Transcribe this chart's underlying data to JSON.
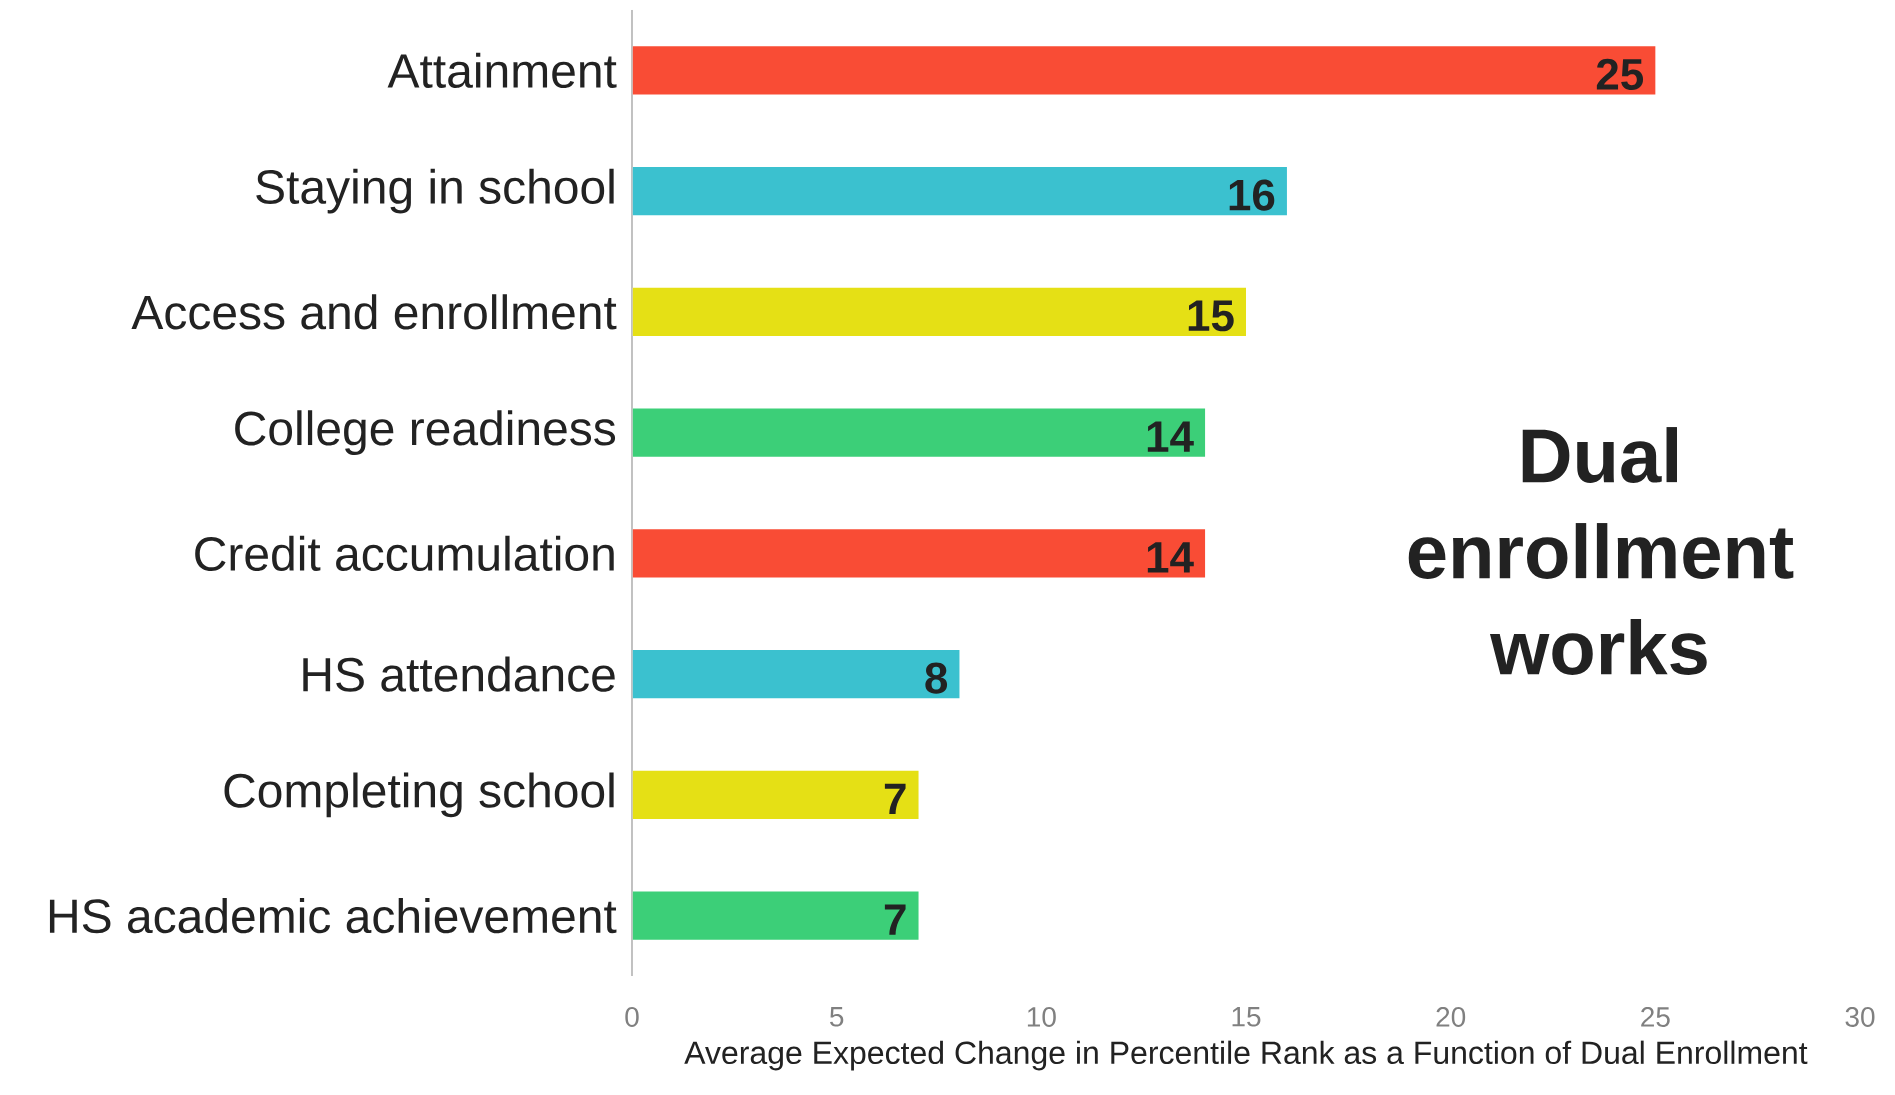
{
  "chart_data": {
    "type": "bar",
    "orientation": "horizontal",
    "xlabel": "Average Expected Change in Percentile Rank as a Function of Dual Enrollment",
    "categories": [
      "Attainment",
      "Staying in school",
      "Access and enrollment",
      "College readiness",
      "Credit accumulation",
      "HS attendance",
      "Completing school",
      "HS academic achievement"
    ],
    "values": [
      25,
      16,
      15,
      14,
      14,
      8,
      7,
      7
    ],
    "colors": [
      "#f94c35",
      "#3bc1cf",
      "#e5e015",
      "#3ccf78",
      "#f94c35",
      "#3bc1cf",
      "#e5e015",
      "#3ccf78"
    ],
    "xlim": [
      0,
      30
    ],
    "xticks": [
      0,
      5,
      10,
      15,
      20,
      25,
      30
    ],
    "data_labels": true,
    "grid": false,
    "annotations": [
      "Dual enrollment works"
    ]
  }
}
